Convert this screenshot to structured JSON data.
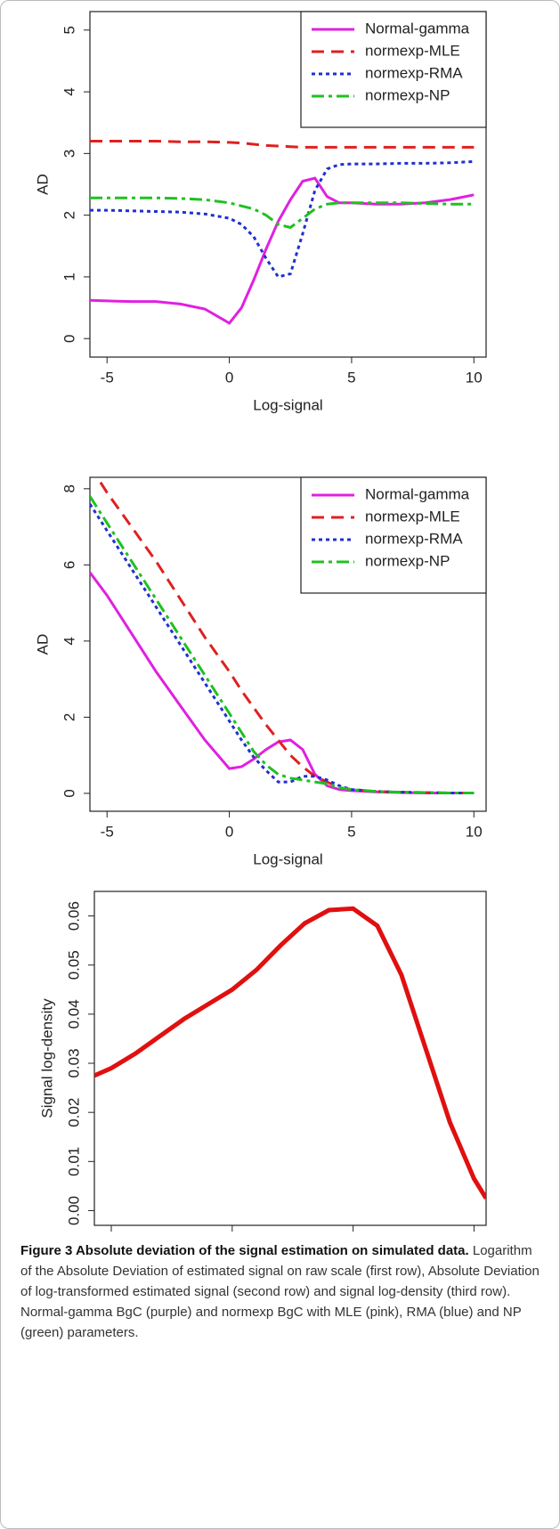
{
  "chart_data": [
    {
      "type": "line",
      "ylabel": "AD",
      "xlabel": "Log-signal",
      "x": [
        -5.7,
        -5,
        -4,
        -3,
        -2,
        -1,
        0,
        0.5,
        1,
        1.5,
        2,
        2.5,
        3,
        3.5,
        4,
        4.5,
        5,
        6,
        7,
        8,
        9,
        10
      ],
      "xlim": [
        -5.7,
        10.5
      ],
      "xticks": [
        -5,
        0,
        5,
        10
      ],
      "ylim": [
        -0.3,
        5.3
      ],
      "yticks": [
        0,
        1,
        2,
        3,
        4,
        5
      ],
      "legend": "upper right",
      "series": [
        {
          "name": "Normal-gamma",
          "color": "#e020e0",
          "style": "solid",
          "values": [
            0.62,
            0.61,
            0.6,
            0.6,
            0.56,
            0.48,
            0.25,
            0.5,
            0.95,
            1.45,
            1.9,
            2.25,
            2.55,
            2.6,
            2.3,
            2.2,
            2.2,
            2.18,
            2.18,
            2.2,
            2.25,
            2.33
          ]
        },
        {
          "name": "normexp-MLE",
          "color": "#e02020",
          "style": "dashed",
          "values": [
            3.2,
            3.2,
            3.2,
            3.2,
            3.19,
            3.19,
            3.18,
            3.17,
            3.15,
            3.13,
            3.12,
            3.11,
            3.1,
            3.1,
            3.1,
            3.1,
            3.1,
            3.1,
            3.1,
            3.1,
            3.1,
            3.1
          ]
        },
        {
          "name": "normexp-RMA",
          "color": "#2030d0",
          "style": "dotted",
          "values": [
            2.08,
            2.08,
            2.07,
            2.06,
            2.05,
            2.02,
            1.95,
            1.85,
            1.65,
            1.3,
            1.0,
            1.05,
            1.7,
            2.4,
            2.75,
            2.82,
            2.83,
            2.83,
            2.84,
            2.84,
            2.85,
            2.87
          ]
        },
        {
          "name": "normexp-NP",
          "color": "#20c020",
          "style": "dashdot",
          "values": [
            2.28,
            2.28,
            2.28,
            2.28,
            2.27,
            2.25,
            2.2,
            2.15,
            2.1,
            2.0,
            1.85,
            1.8,
            1.95,
            2.1,
            2.18,
            2.2,
            2.2,
            2.2,
            2.2,
            2.19,
            2.18,
            2.18
          ]
        }
      ]
    },
    {
      "type": "line",
      "ylabel": "AD",
      "xlabel": "Log-signal",
      "x": [
        -5.7,
        -5,
        -4,
        -3,
        -2,
        -1,
        0,
        0.5,
        1,
        1.5,
        2,
        2.5,
        3,
        3.5,
        4,
        4.5,
        5,
        6,
        7,
        8,
        9,
        10
      ],
      "xlim": [
        -5.7,
        10.5
      ],
      "xticks": [
        -5,
        0,
        5,
        10
      ],
      "ylim": [
        -0.47,
        8.3
      ],
      "yticks": [
        0,
        2,
        4,
        6,
        8
      ],
      "legend": "upper right",
      "series": [
        {
          "name": "Normal-gamma",
          "color": "#e020e0",
          "style": "solid",
          "values": [
            5.8,
            5.2,
            4.2,
            3.2,
            2.3,
            1.4,
            0.65,
            0.7,
            0.9,
            1.15,
            1.35,
            1.4,
            1.15,
            0.5,
            0.2,
            0.1,
            0.07,
            0.04,
            0.02,
            0.01,
            0.01,
            0.01
          ]
        },
        {
          "name": "normexp-MLE",
          "color": "#e02020",
          "style": "dashed",
          "values": [
            8.6,
            7.9,
            7.0,
            6.1,
            5.1,
            4.1,
            3.2,
            2.7,
            2.25,
            1.8,
            1.4,
            1.0,
            0.7,
            0.45,
            0.3,
            0.15,
            0.1,
            0.05,
            0.03,
            0.02,
            0.01,
            0.01
          ]
        },
        {
          "name": "normexp-RMA",
          "color": "#2030d0",
          "style": "dotted",
          "values": [
            7.6,
            6.9,
            5.9,
            4.9,
            3.9,
            2.9,
            1.9,
            1.4,
            0.95,
            0.6,
            0.3,
            0.3,
            0.45,
            0.45,
            0.35,
            0.2,
            0.1,
            0.05,
            0.03,
            0.02,
            0.01,
            0.01
          ]
        },
        {
          "name": "normexp-NP",
          "color": "#20c020",
          "style": "dashdot",
          "values": [
            7.8,
            7.1,
            6.1,
            5.1,
            4.1,
            3.1,
            2.1,
            1.6,
            1.1,
            0.75,
            0.5,
            0.4,
            0.35,
            0.3,
            0.25,
            0.15,
            0.1,
            0.05,
            0.03,
            0.02,
            0.01,
            0.01
          ]
        }
      ]
    },
    {
      "type": "line",
      "ylabel": "Signal log-density",
      "x": [
        -5.7,
        -5,
        -4,
        -3,
        -2,
        -1,
        0,
        1,
        2,
        3,
        4,
        5,
        6,
        7,
        8,
        9,
        10,
        10.5
      ],
      "xlim": [
        -5.7,
        10.5
      ],
      "xticks": [
        -5,
        0,
        5,
        10
      ],
      "ylim": [
        -0.003,
        0.065
      ],
      "yticks": [
        {
          "value": 0,
          "label": "0.00"
        },
        0.01,
        0.02,
        0.03,
        0.04,
        0.05,
        0.06
      ],
      "series": [
        {
          "color": "#e01010",
          "style": "thick",
          "values": [
            0.0275,
            0.029,
            0.032,
            0.0355,
            0.039,
            0.042,
            0.045,
            0.049,
            0.054,
            0.0585,
            0.0612,
            0.0615,
            0.058,
            0.048,
            0.033,
            0.018,
            0.0065,
            0.0025
          ]
        }
      ]
    }
  ],
  "caption": {
    "title": "Figure 3 Absolute deviation of the signal estimation on simulated data.",
    "body": "Logarithm of the Absolute Deviation of estimated signal on raw scale (first row), Absolute Deviation of log-transformed estimated signal (second row) and signal log-density (third row). Normal-gamma BgC (purple) and normexp BgC with MLE (pink), RMA (blue) and NP (green) parameters."
  }
}
